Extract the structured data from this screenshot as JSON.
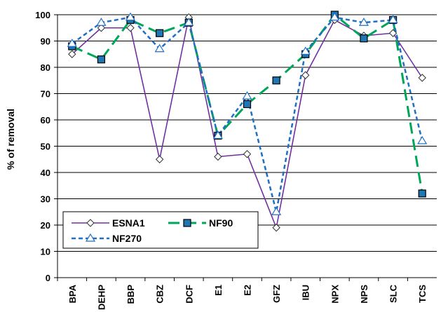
{
  "chart_data": {
    "type": "line",
    "title": "",
    "xlabel": "",
    "ylabel": "% of removal",
    "ylim": [
      0,
      100
    ],
    "yticks": [
      0,
      10,
      20,
      30,
      40,
      50,
      60,
      70,
      80,
      90,
      100
    ],
    "grid": "horizontal",
    "legend_position": "bottom-left",
    "categories": [
      "BPA",
      "DEHP",
      "BBP",
      "CBZ",
      "DCF",
      "E1",
      "E2",
      "GFZ",
      "IBU",
      "NPX",
      "NPS",
      "SLC",
      "TCS"
    ],
    "series": [
      {
        "name": "ESNA1",
        "color": "#7030A0",
        "line_style": "solid",
        "marker": "diamond",
        "values": [
          85,
          95,
          95,
          45,
          99,
          46,
          47,
          19,
          77,
          98,
          92,
          93,
          76
        ]
      },
      {
        "name": "NF90",
        "color": "#00A65A",
        "line_style": "long-dash",
        "marker": "square",
        "values": [
          88,
          83,
          98,
          93,
          97,
          54,
          66,
          75,
          85,
          100,
          91,
          98,
          32
        ]
      },
      {
        "name": "NF270",
        "color": "#1F6FC5",
        "line_style": "dashed",
        "marker": "triangle",
        "values": [
          89,
          97,
          99,
          87,
          97,
          54,
          69,
          25,
          86,
          99,
          97,
          98,
          52
        ]
      }
    ]
  }
}
